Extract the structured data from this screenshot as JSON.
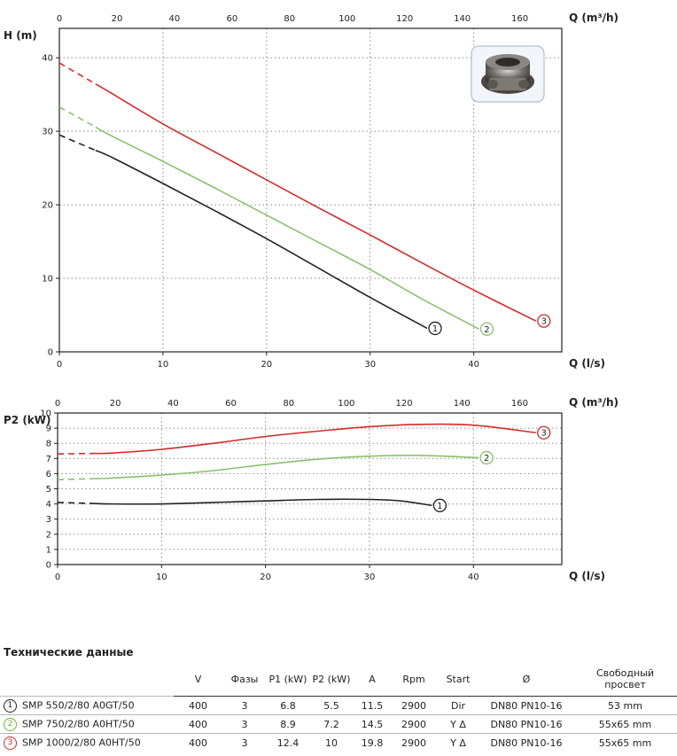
{
  "chart_data": [
    {
      "type": "line",
      "ylabel": "H (m)",
      "xlabel": "Q (l/s)",
      "top_xlabel": "Q (m³/h)",
      "xlim": [
        0,
        48.5
      ],
      "ylim": [
        0,
        44
      ],
      "x_ticks": [
        "0",
        "10",
        "20",
        "30",
        "40"
      ],
      "top_x_ticks": [
        "0",
        "20",
        "40",
        "60",
        "80",
        "100",
        "120",
        "140",
        "160"
      ],
      "y_ticks": [
        "0",
        "10",
        "20",
        "30",
        "40"
      ],
      "grid": true,
      "series": [
        {
          "name": "1",
          "color": "#222222",
          "dashed_until": 3.5,
          "x": [
            0,
            5,
            10,
            15,
            20,
            25,
            30,
            35.5
          ],
          "y": [
            29.5,
            26.5,
            22.9,
            19.2,
            15.4,
            11.4,
            7.4,
            3.2
          ]
        },
        {
          "name": "2",
          "color": "#8dc06e",
          "dashed_until": 3.5,
          "x": [
            0,
            5,
            10,
            15,
            20,
            25,
            30,
            35,
            40.5
          ],
          "y": [
            33.3,
            29.4,
            25.9,
            22.3,
            18.6,
            14.9,
            11.2,
            7.2,
            3.1
          ]
        },
        {
          "name": "3",
          "color": "#d42a2a",
          "dashed_until": 3.5,
          "x": [
            0,
            5,
            10,
            15,
            20,
            25,
            30,
            35,
            40,
            46
          ],
          "y": [
            39.3,
            35.2,
            31.0,
            27.2,
            23.4,
            19.6,
            15.9,
            12.1,
            8.4,
            4.2
          ]
        }
      ]
    },
    {
      "type": "line",
      "ylabel": "P2 (kW)",
      "xlabel": "Q (l/s)",
      "top_xlabel": "Q (m³/h)",
      "xlim": [
        0,
        48.5
      ],
      "ylim": [
        0,
        10
      ],
      "x_ticks": [
        "0",
        "10",
        "20",
        "30",
        "40"
      ],
      "top_x_ticks": [
        "0",
        "20",
        "40",
        "60",
        "80",
        "100",
        "120",
        "140",
        "160"
      ],
      "y_ticks": [
        "0",
        "1",
        "2",
        "3",
        "4",
        "5",
        "6",
        "7",
        "8",
        "9",
        "10"
      ],
      "grid": true,
      "series": [
        {
          "name": "1",
          "color": "#222222",
          "dashed_until": 3.5,
          "x": [
            0,
            5,
            10,
            15,
            20,
            25,
            30,
            33,
            36
          ],
          "y": [
            4.1,
            4.0,
            4.0,
            4.1,
            4.2,
            4.3,
            4.3,
            4.2,
            3.9
          ]
        },
        {
          "name": "2",
          "color": "#8dc06e",
          "dashed_until": 3.5,
          "x": [
            0,
            5,
            10,
            15,
            20,
            25,
            30,
            35,
            40.5
          ],
          "y": [
            5.6,
            5.7,
            5.9,
            6.2,
            6.6,
            6.95,
            7.15,
            7.2,
            7.05
          ]
        },
        {
          "name": "3",
          "color": "#d42a2a",
          "dashed_until": 3.5,
          "x": [
            0,
            5,
            10,
            15,
            20,
            25,
            30,
            35,
            40,
            46
          ],
          "y": [
            7.3,
            7.35,
            7.6,
            8.0,
            8.45,
            8.8,
            9.1,
            9.25,
            9.2,
            8.7
          ]
        }
      ]
    }
  ],
  "tech": {
    "title": "Технические данные",
    "headers": [
      "V",
      "Фазы",
      "P1 (kW)",
      "P2 (kW)",
      "A",
      "Rpm",
      "Start",
      "Ø",
      "Свободный просвет"
    ],
    "rows": [
      {
        "num": "1",
        "color": "#222222",
        "model": "SMP 550/2/80 A0GT/50",
        "cells": [
          "400",
          "3",
          "6.8",
          "5.5",
          "11.5",
          "2900",
          "Dir",
          "DN80 PN10-16",
          "53 mm"
        ]
      },
      {
        "num": "2",
        "color": "#6db33f",
        "model": "SMP 750/2/80 A0HT/50",
        "cells": [
          "400",
          "3",
          "8.9",
          "7.2",
          "14.5",
          "2900",
          "Y Δ",
          "DN80 PN10-16",
          "55x65 mm"
        ]
      },
      {
        "num": "3",
        "color": "#d42a2a",
        "model": "SMP 1000/2/80 A0HT/50",
        "cells": [
          "400",
          "3",
          "12.4",
          "10",
          "19.8",
          "2900",
          "Y Δ",
          "DN80 PN10-16",
          "55x65 mm"
        ]
      }
    ]
  }
}
